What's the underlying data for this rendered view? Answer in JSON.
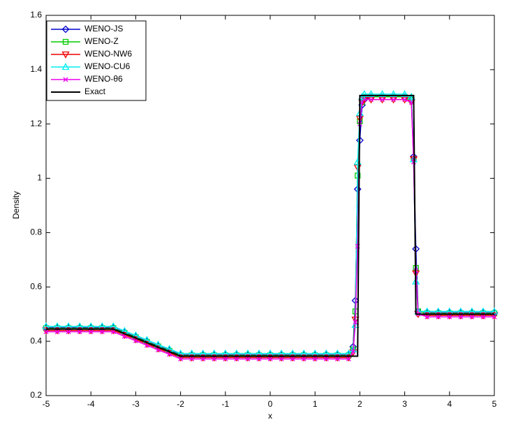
{
  "chart_data": {
    "type": "line",
    "xlabel": "x",
    "ylabel": "Density",
    "xlim": [
      -5,
      5
    ],
    "ylim": [
      0.2,
      1.6
    ],
    "xticks": [
      -5,
      -4,
      -3,
      -2,
      -1,
      0,
      1,
      2,
      3,
      4,
      5
    ],
    "yticks": [
      0.2,
      0.4,
      0.6,
      0.8,
      1,
      1.2,
      1.4,
      1.6
    ],
    "legend": "upper left",
    "x": [
      -5,
      -4.75,
      -4.5,
      -4.25,
      -4,
      -3.75,
      -3.5,
      -3.25,
      -3,
      -2.75,
      -2.5,
      -2.25,
      -2,
      -1.75,
      -1.5,
      -1.25,
      -1,
      -0.75,
      -0.5,
      -0.25,
      0,
      0.25,
      0.5,
      0.75,
      1,
      1.25,
      1.5,
      1.75,
      1.85,
      1.9,
      1.95,
      2,
      2.05,
      2.1,
      2.25,
      2.5,
      2.75,
      3,
      3.15,
      3.2,
      3.25,
      3.3,
      3.5,
      3.75,
      4,
      4.25,
      4.5,
      4.75,
      5
    ],
    "series": [
      {
        "name": "WENO-JS",
        "color": "#0000cc",
        "marker": "diamond",
        "values": [
          0.45,
          0.45,
          0.45,
          0.45,
          0.45,
          0.45,
          0.45,
          0.433,
          0.417,
          0.4,
          0.383,
          0.367,
          0.35,
          0.35,
          0.35,
          0.35,
          0.35,
          0.35,
          0.35,
          0.35,
          0.35,
          0.35,
          0.35,
          0.35,
          0.35,
          0.35,
          0.35,
          0.35,
          0.38,
          0.55,
          0.96,
          1.14,
          1.27,
          1.29,
          1.3,
          1.3,
          1.3,
          1.3,
          1.29,
          1.08,
          0.74,
          0.51,
          0.505,
          0.505,
          0.505,
          0.505,
          0.505,
          0.505,
          0.505
        ]
      },
      {
        "name": "WENO-Z",
        "color": "#00cc00",
        "marker": "square",
        "values": [
          0.448,
          0.448,
          0.448,
          0.448,
          0.448,
          0.448,
          0.448,
          0.431,
          0.415,
          0.398,
          0.381,
          0.365,
          0.348,
          0.348,
          0.348,
          0.348,
          0.348,
          0.348,
          0.348,
          0.348,
          0.348,
          0.348,
          0.348,
          0.348,
          0.348,
          0.348,
          0.348,
          0.348,
          0.37,
          0.51,
          1.01,
          1.21,
          1.28,
          1.3,
          1.3,
          1.3,
          1.3,
          1.3,
          1.29,
          1.07,
          0.67,
          0.51,
          0.503,
          0.503,
          0.503,
          0.503,
          0.503,
          0.503,
          0.503
        ]
      },
      {
        "name": "WENO-NW6",
        "color": "#ee0000",
        "marker": "triangle-down",
        "values": [
          0.44,
          0.44,
          0.44,
          0.44,
          0.44,
          0.44,
          0.44,
          0.423,
          0.407,
          0.39,
          0.373,
          0.357,
          0.34,
          0.34,
          0.34,
          0.34,
          0.34,
          0.34,
          0.34,
          0.34,
          0.34,
          0.34,
          0.34,
          0.34,
          0.34,
          0.34,
          0.34,
          0.34,
          0.36,
          0.48,
          1.04,
          1.22,
          1.28,
          1.29,
          1.29,
          1.29,
          1.29,
          1.29,
          1.28,
          1.07,
          0.65,
          0.5,
          0.495,
          0.495,
          0.495,
          0.495,
          0.495,
          0.495,
          0.495
        ]
      },
      {
        "name": "WENO-CU6",
        "color": "#00eeee",
        "marker": "triangle-up",
        "values": [
          0.455,
          0.455,
          0.455,
          0.455,
          0.455,
          0.455,
          0.455,
          0.438,
          0.422,
          0.405,
          0.388,
          0.372,
          0.355,
          0.355,
          0.355,
          0.355,
          0.355,
          0.355,
          0.355,
          0.355,
          0.355,
          0.355,
          0.355,
          0.355,
          0.355,
          0.355,
          0.355,
          0.355,
          0.37,
          0.46,
          1.06,
          1.24,
          1.3,
          1.31,
          1.31,
          1.31,
          1.31,
          1.31,
          1.3,
          1.07,
          0.62,
          0.51,
          0.51,
          0.51,
          0.51,
          0.51,
          0.51,
          0.51,
          0.51
        ]
      },
      {
        "name": "WENO-θ6",
        "color": "#ee00ee",
        "marker": "x",
        "values": [
          0.435,
          0.435,
          0.435,
          0.435,
          0.435,
          0.435,
          0.435,
          0.418,
          0.402,
          0.385,
          0.368,
          0.352,
          0.335,
          0.335,
          0.335,
          0.335,
          0.335,
          0.335,
          0.335,
          0.335,
          0.335,
          0.335,
          0.335,
          0.335,
          0.335,
          0.335,
          0.335,
          0.335,
          0.36,
          0.47,
          0.75,
          1.2,
          1.28,
          1.29,
          1.29,
          1.29,
          1.29,
          1.29,
          1.28,
          1.06,
          0.66,
          0.5,
          0.49,
          0.49,
          0.49,
          0.49,
          0.49,
          0.49,
          0.49
        ]
      },
      {
        "name": "Exact",
        "color": "#000000",
        "marker": "none",
        "values": [
          0.445,
          0.445,
          0.445,
          0.445,
          0.445,
          0.445,
          0.445,
          0.428,
          0.412,
          0.395,
          0.378,
          0.362,
          0.345,
          0.345,
          0.345,
          0.345,
          0.345,
          0.345,
          0.345,
          0.345,
          0.345,
          0.345,
          0.345,
          0.345,
          0.345,
          0.345,
          0.345,
          0.345,
          0.345,
          0.345,
          0.345,
          1.305,
          1.305,
          1.305,
          1.305,
          1.305,
          1.305,
          1.305,
          1.305,
          1.305,
          0.5,
          0.5,
          0.5,
          0.5,
          0.5,
          0.5,
          0.5,
          0.5,
          0.5
        ]
      }
    ]
  }
}
